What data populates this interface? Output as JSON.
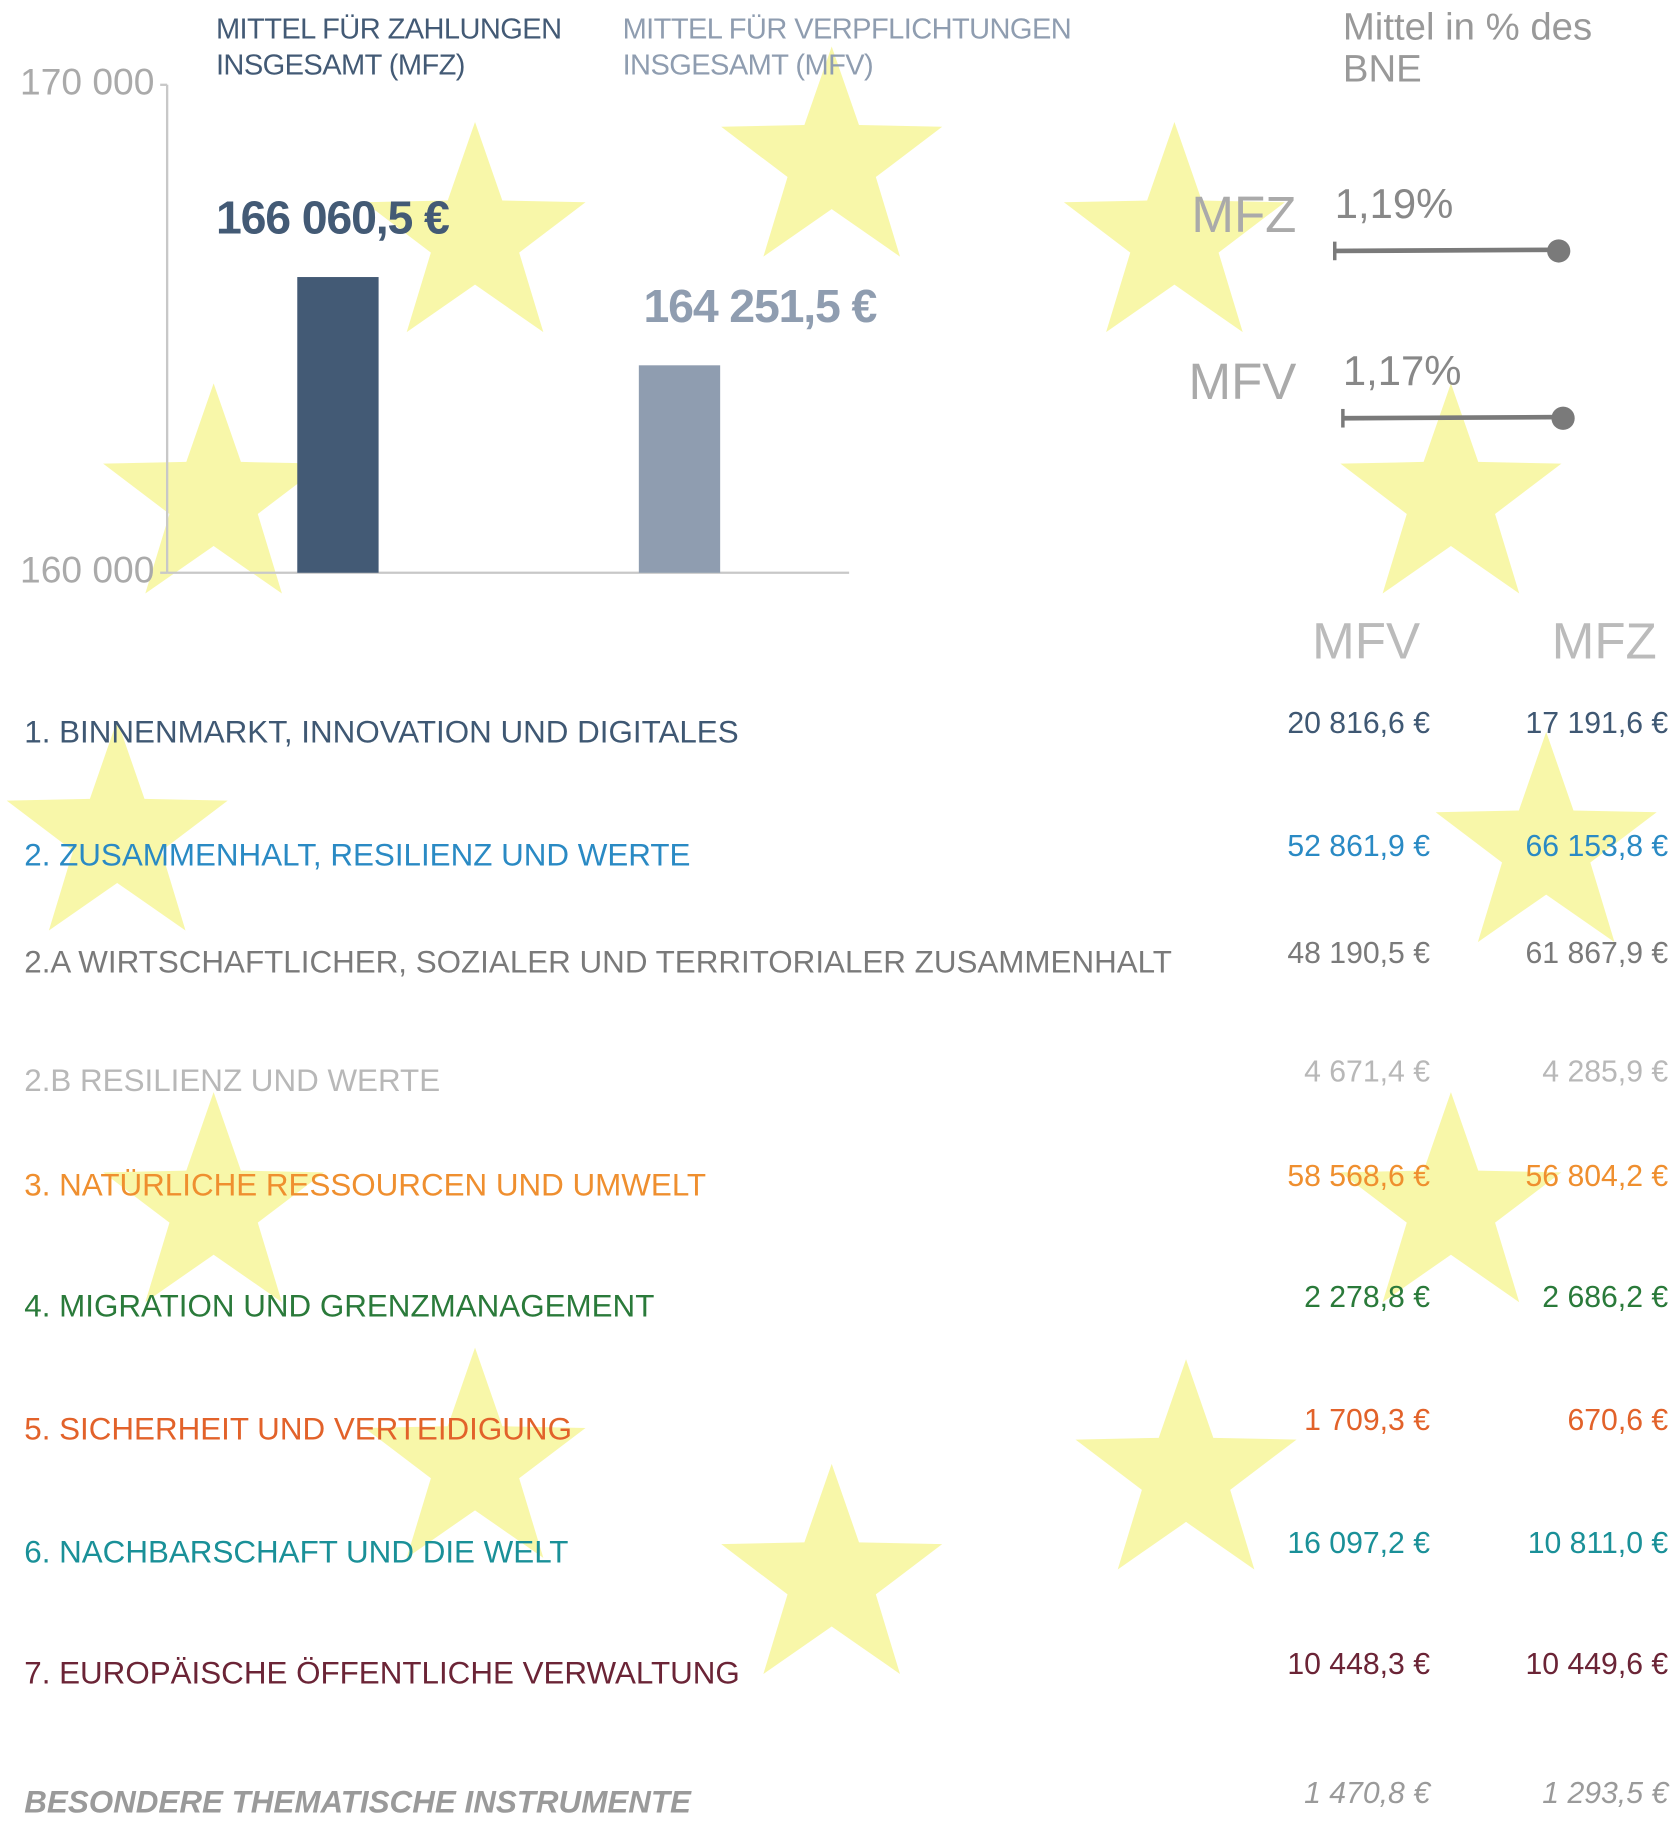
{
  "chart_data": [
    {
      "type": "bar",
      "categories": [
        "MITTEL FÜR ZAHLUNGEN INSGESAMT (MFZ)",
        "MITTEL FÜR VERPFLICHTUNGEN INSGESAMT (MFV)"
      ],
      "values": [
        166060.5,
        164251.5
      ],
      "value_labels": [
        "166 060,5 €",
        "164 251,5 €"
      ],
      "colors": [
        "#435a75",
        "#8f9db0"
      ],
      "ylim": [
        160000,
        170000
      ],
      "yticks": [
        {
          "value": 160000,
          "label": "160 000"
        },
        {
          "value": 170000,
          "label": "170 000"
        }
      ]
    },
    {
      "type": "lollipop",
      "title": "Mittel in % des BNE",
      "categories": [
        "MFZ",
        "MFV"
      ],
      "values": [
        1.19,
        1.17
      ],
      "value_labels": [
        "1,19%",
        "1,17%"
      ],
      "color": "#7a7a7a"
    }
  ],
  "table": {
    "columns": [
      "MFV",
      "MFZ"
    ],
    "rows": [
      {
        "label": "1. BINNENMARKT, INNOVATION UND DIGITALES",
        "mfv": "20 816,6 €",
        "mfz": "17 191,6 €",
        "color": "#3f5873"
      },
      {
        "label": "2. ZUSAMMENHALT, RESILIENZ UND WERTE",
        "mfv": "52 861,9 €",
        "mfz": "66 153,8 €",
        "color": "#2a8ac4"
      },
      {
        "label": "2.A WIRTSCHAFTLICHER, SOZIALER UND TERRITORIALER ZUSAMMENHALT",
        "mfv": "48 190,5  €",
        "mfz": "61 867,9 €",
        "color": "#7a7a7a"
      },
      {
        "label": "2.B RESILIENZ UND WERTE",
        "mfv": "4 671,4 €",
        "mfz": "4 285,9 €",
        "color": "#b8b8b8"
      },
      {
        "label": "3. NATÜRLICHE RESSOURCEN UND UMWELT",
        "mfv": "58 568,6 €",
        "mfz": "56 804,2 €",
        "color": "#ef8f2f"
      },
      {
        "label": "4. MIGRATION UND GRENZMANAGEMENT",
        "mfv": "2 278,8 €",
        "mfz": "2 686,2 €",
        "color": "#2a7a3a"
      },
      {
        "label": "5. SICHERHEIT UND VERTEIDIGUNG",
        "mfv": "1 709,3 €",
        "mfz": "670,6 €",
        "color": "#e2622a"
      },
      {
        "label": "6. NACHBARSCHAFT UND DIE WELT",
        "mfv": "16 097,2 €",
        "mfz": "10 811,0 €",
        "color": "#1a9098"
      },
      {
        "label": "7. EUROPÄISCHE ÖFFENTLICHE VERWALTUNG",
        "mfv": "10 448,3 €",
        "mfz": "10 449,6 €",
        "color": "#6b2436"
      },
      {
        "label": "BESONDERE THEMATISCHE INSTRUMENTE",
        "mfv": "1 470,8 €",
        "mfz": "1 293,5 €",
        "color": "#9a9a9a",
        "italic": true
      }
    ]
  }
}
